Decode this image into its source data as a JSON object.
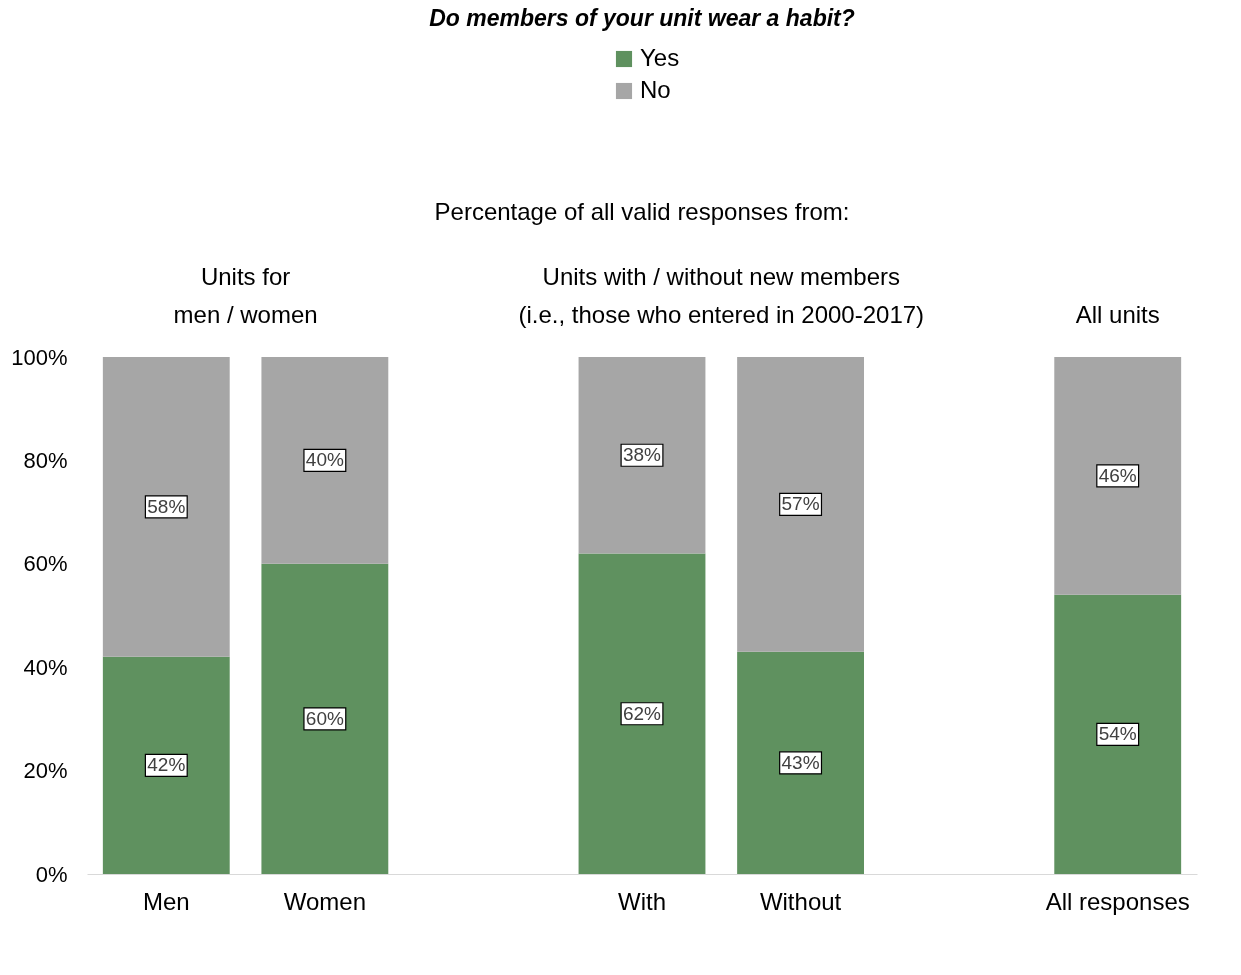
{
  "chart_data": {
    "type": "bar",
    "stacked": true,
    "title": "Do members of your unit wear a habit?",
    "subtitle": "Percentage of all valid responses from:",
    "categories": [
      "Men",
      "Women",
      null,
      "With",
      "Without",
      null,
      "All responses"
    ],
    "series": [
      {
        "name": "Yes",
        "color": "#5f915f",
        "values": [
          42,
          60,
          null,
          62,
          43,
          null,
          54
        ],
        "value_labels": [
          "42%",
          "60%",
          null,
          "62%",
          "43%",
          null,
          "54%"
        ]
      },
      {
        "name": "No",
        "color": "#a6a6a6",
        "values": [
          58,
          40,
          null,
          38,
          57,
          null,
          46
        ],
        "value_labels": [
          "58%",
          "40%",
          null,
          "38%",
          "57%",
          null,
          "46%"
        ]
      }
    ],
    "annotations": [
      "Units for\nmen / women",
      "Units with / without new members\n(i.e., those who entered in 2000-2017)",
      "All units"
    ],
    "ylim": [
      0,
      100
    ],
    "yticks": [
      {
        "value": 0,
        "label": "0%"
      },
      {
        "value": 20,
        "label": "20%"
      },
      {
        "value": 40,
        "label": "40%"
      },
      {
        "value": 60,
        "label": "60%"
      },
      {
        "value": 80,
        "label": "80%"
      },
      {
        "value": 100,
        "label": "100%"
      }
    ],
    "legend": "top",
    "grid": false
  }
}
